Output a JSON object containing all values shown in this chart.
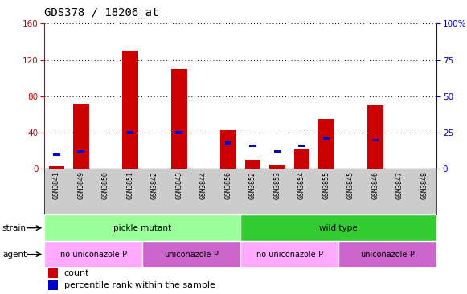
{
  "title": "GDS378 / 18206_at",
  "samples": [
    "GSM3841",
    "GSM3849",
    "GSM3850",
    "GSM3851",
    "GSM3842",
    "GSM3843",
    "GSM3844",
    "GSM3856",
    "GSM3852",
    "GSM3853",
    "GSM3854",
    "GSM3855",
    "GSM3845",
    "GSM3846",
    "GSM3847",
    "GSM3848"
  ],
  "counts": [
    3,
    72,
    0,
    130,
    0,
    110,
    0,
    43,
    10,
    5,
    22,
    55,
    0,
    70,
    0,
    0
  ],
  "percentiles": [
    10,
    12,
    0,
    25,
    0,
    25,
    0,
    18,
    16,
    12,
    16,
    21,
    0,
    20,
    0,
    0
  ],
  "left_ylim": [
    0,
    160
  ],
  "right_ylim": [
    0,
    100
  ],
  "left_yticks": [
    0,
    40,
    80,
    120,
    160
  ],
  "right_yticks": [
    0,
    25,
    50,
    75,
    100
  ],
  "right_yticklabels": [
    "0",
    "25",
    "50",
    "75",
    "100%"
  ],
  "bar_color": "#cc0000",
  "percentile_color": "#0000cc",
  "grid_color": "#000000",
  "xtick_bg": "#cccccc",
  "strain_colors": [
    "#99ff99",
    "#33cc33"
  ],
  "agent_colors": [
    "#ffaaff",
    "#cc66cc"
  ],
  "title_fontsize": 10,
  "strain_groups": [
    {
      "label": "pickle mutant",
      "start": 0,
      "end": 8,
      "color_idx": 0
    },
    {
      "label": "wild type",
      "start": 8,
      "end": 16,
      "color_idx": 1
    }
  ],
  "agent_groups": [
    {
      "label": "no uniconazole-P",
      "start": 0,
      "end": 4,
      "color_idx": 0
    },
    {
      "label": "uniconazole-P",
      "start": 4,
      "end": 8,
      "color_idx": 1
    },
    {
      "label": "no uniconazole-P",
      "start": 8,
      "end": 12,
      "color_idx": 0
    },
    {
      "label": "uniconazole-P",
      "start": 12,
      "end": 16,
      "color_idx": 1
    }
  ],
  "legend_count_label": "count",
  "legend_percentile_label": "percentile rank within the sample",
  "strain_label": "strain",
  "agent_label": "agent"
}
